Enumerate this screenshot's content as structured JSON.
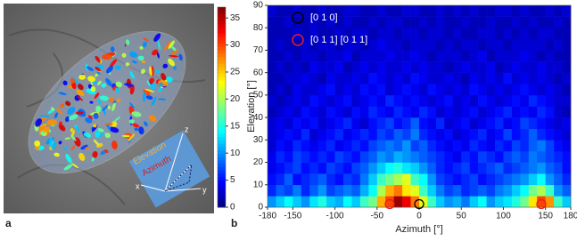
{
  "panel_a": {
    "label": "a",
    "inset": {
      "elevation": "Elevation",
      "azimuth": "Azimuth",
      "x": "x",
      "y": "y",
      "z": "z"
    }
  },
  "chart_data": {
    "type": "heatmap",
    "panel_label": "b",
    "colormap": "jet",
    "x_label": "Azimuth [°]",
    "y_label": "Elevation [°]",
    "xlim": [
      -180,
      180
    ],
    "ylim": [
      0,
      90
    ],
    "xticks": [
      -180,
      -150,
      -100,
      -50,
      0,
      50,
      100,
      150,
      180
    ],
    "yticks": [
      0,
      10,
      20,
      30,
      40,
      50,
      60,
      70,
      80,
      90
    ],
    "zlim": [
      0,
      37
    ],
    "zticks": [
      0,
      5,
      10,
      15,
      20,
      25,
      30,
      35
    ],
    "z": [
      [
        10,
        12,
        14,
        12,
        10,
        13,
        15,
        12,
        11,
        14,
        12,
        16,
        18,
        26,
        30,
        36,
        33,
        28,
        22,
        16,
        12,
        10,
        11,
        9,
        12,
        14,
        10,
        12,
        13,
        15,
        18,
        24,
        30,
        27,
        16,
        12
      ],
      [
        6,
        8,
        7,
        9,
        6,
        8,
        10,
        7,
        8,
        9,
        8,
        11,
        14,
        20,
        26,
        28,
        24,
        22,
        16,
        12,
        9,
        7,
        8,
        6,
        7,
        8,
        7,
        9,
        10,
        12,
        14,
        18,
        20,
        16,
        10,
        8
      ],
      [
        5,
        6,
        8,
        5,
        6,
        7,
        8,
        6,
        5,
        7,
        6,
        9,
        12,
        16,
        18,
        20,
        22,
        16,
        14,
        10,
        7,
        6,
        5,
        6,
        7,
        5,
        6,
        7,
        8,
        9,
        10,
        12,
        14,
        10,
        8,
        6
      ],
      [
        4,
        5,
        6,
        7,
        5,
        6,
        5,
        7,
        6,
        5,
        7,
        8,
        10,
        12,
        14,
        15,
        13,
        12,
        10,
        8,
        6,
        5,
        6,
        7,
        5,
        6,
        7,
        8,
        6,
        7,
        8,
        9,
        10,
        8,
        7,
        5
      ],
      [
        4,
        6,
        5,
        7,
        6,
        5,
        6,
        5,
        7,
        6,
        5,
        7,
        8,
        10,
        9,
        11,
        10,
        9,
        8,
        7,
        6,
        5,
        4,
        6,
        5,
        7,
        6,
        5,
        7,
        8,
        7,
        9,
        8,
        7,
        6,
        5
      ],
      [
        3,
        5,
        4,
        6,
        5,
        4,
        5,
        6,
        4,
        5,
        6,
        5,
        7,
        8,
        9,
        8,
        10,
        7,
        8,
        6,
        5,
        4,
        5,
        4,
        6,
        5,
        4,
        6,
        5,
        7,
        6,
        8,
        9,
        7,
        5,
        4
      ],
      [
        3,
        4,
        5,
        4,
        6,
        3,
        4,
        5,
        6,
        4,
        5,
        6,
        5,
        7,
        6,
        8,
        7,
        9,
        6,
        5,
        4,
        5,
        3,
        4,
        5,
        6,
        4,
        5,
        7,
        5,
        6,
        8,
        6,
        5,
        4,
        3
      ],
      [
        3,
        4,
        3,
        5,
        4,
        5,
        3,
        4,
        5,
        6,
        4,
        3,
        5,
        6,
        7,
        5,
        6,
        8,
        5,
        4,
        6,
        3,
        4,
        5,
        3,
        4,
        5,
        6,
        4,
        5,
        7,
        6,
        5,
        4,
        3,
        4
      ],
      [
        2,
        3,
        4,
        3,
        5,
        4,
        3,
        5,
        4,
        3,
        5,
        4,
        6,
        5,
        4,
        6,
        5,
        4,
        6,
        5,
        3,
        4,
        3,
        4,
        5,
        3,
        4,
        5,
        6,
        4,
        5,
        4,
        6,
        5,
        3,
        2
      ],
      [
        3,
        2,
        3,
        4,
        3,
        5,
        4,
        3,
        4,
        5,
        3,
        4,
        5,
        4,
        6,
        5,
        4,
        5,
        4,
        3,
        4,
        5,
        3,
        4,
        3,
        5,
        4,
        3,
        4,
        5,
        4,
        6,
        5,
        4,
        3,
        3
      ],
      [
        2,
        3,
        2,
        4,
        3,
        3,
        4,
        5,
        3,
        4,
        3,
        5,
        4,
        5,
        3,
        4,
        5,
        4,
        3,
        5,
        4,
        3,
        4,
        3,
        5,
        4,
        3,
        4,
        3,
        4,
        5,
        4,
        3,
        4,
        3,
        2
      ],
      [
        2,
        2,
        3,
        3,
        4,
        3,
        2,
        4,
        3,
        3,
        4,
        3,
        5,
        4,
        3,
        4,
        3,
        5,
        4,
        3,
        3,
        4,
        3,
        2,
        4,
        3,
        4,
        3,
        5,
        3,
        4,
        3,
        4,
        3,
        2,
        3
      ],
      [
        2,
        3,
        2,
        3,
        2,
        4,
        3,
        3,
        4,
        2,
        3,
        4,
        3,
        4,
        3,
        3,
        4,
        3,
        4,
        3,
        3,
        2,
        3,
        4,
        3,
        3,
        4,
        2,
        3,
        4,
        3,
        3,
        4,
        3,
        3,
        2
      ],
      [
        2,
        2,
        3,
        2,
        3,
        3,
        2,
        3,
        3,
        4,
        2,
        3,
        3,
        3,
        4,
        3,
        3,
        4,
        3,
        2,
        3,
        3,
        3,
        2,
        3,
        4,
        2,
        3,
        3,
        3,
        4,
        3,
        2,
        3,
        2,
        2
      ],
      [
        2,
        3,
        2,
        2,
        3,
        2,
        3,
        3,
        2,
        3,
        3,
        2,
        3,
        4,
        3,
        3,
        2,
        3,
        3,
        3,
        2,
        3,
        2,
        3,
        3,
        2,
        3,
        3,
        2,
        3,
        3,
        3,
        3,
        2,
        3,
        2
      ],
      [
        2,
        2,
        2,
        3,
        2,
        3,
        2,
        2,
        3,
        2,
        3,
        3,
        2,
        3,
        3,
        2,
        3,
        3,
        2,
        3,
        3,
        2,
        3,
        2,
        2,
        3,
        3,
        2,
        3,
        2,
        3,
        2,
        3,
        3,
        2,
        2
      ],
      [
        2,
        2,
        3,
        2,
        2,
        3,
        2,
        3,
        2,
        3,
        2,
        2,
        3,
        2,
        3,
        3,
        2,
        2,
        3,
        2,
        3,
        2,
        2,
        3,
        2,
        2,
        3,
        2,
        2,
        3,
        2,
        3,
        2,
        2,
        3,
        2
      ],
      [
        3,
        2,
        2,
        3,
        2,
        2,
        3,
        2,
        2,
        3,
        3,
        2,
        2,
        3,
        2,
        2,
        3,
        3,
        2,
        2,
        3,
        2,
        3,
        2,
        3,
        2,
        2,
        3,
        3,
        2,
        3,
        2,
        2,
        3,
        2,
        3
      ]
    ],
    "markers": [
      {
        "name": "[0 1 0]",
        "color": "#000000",
        "x": [
          0
        ],
        "y": [
          1
        ]
      },
      {
        "name": "[0 1 1] [0 1 1]",
        "color": "#e02020",
        "x": [
          -35,
          145
        ],
        "y": [
          1,
          1
        ]
      }
    ]
  }
}
